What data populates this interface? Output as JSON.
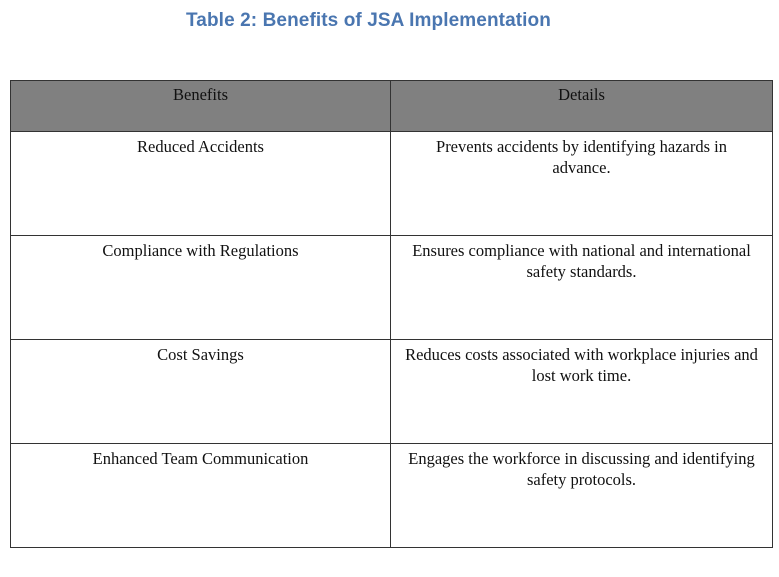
{
  "document": {
    "title": "Table 2: Benefits of JSA Implementation"
  },
  "table": {
    "headers": [
      "Benefits",
      "Details"
    ],
    "rows": [
      {
        "benefit": "Reduced Accidents",
        "details": "Prevents accidents by identifying hazards in advance."
      },
      {
        "benefit": "Compliance with Regulations",
        "details": "Ensures compliance with national and international safety standards."
      },
      {
        "benefit": "Cost Savings",
        "details": "Reduces costs associated with workplace injuries and lost work time."
      },
      {
        "benefit": "Enhanced Team Communication",
        "details": "Engages the workforce in discussing and identifying safety protocols."
      }
    ]
  },
  "colors": {
    "title": "#4a76b0",
    "header_fill": "#808080",
    "border": "#333333",
    "text": "#111111"
  }
}
